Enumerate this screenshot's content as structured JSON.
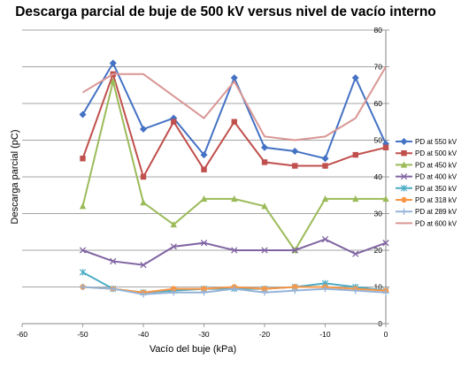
{
  "chart_data": {
    "type": "line",
    "title": "Descarga parcial de buje de 500 kV versus nivel de vacío interno",
    "xlabel": "Vacío del buje (kPa)",
    "ylabel": "Descarga parcial (pC)",
    "xlim": [
      -60,
      0
    ],
    "ylim": [
      0,
      80
    ],
    "x_ticks": [
      -60,
      -50,
      -40,
      -30,
      -20,
      -10,
      0
    ],
    "y_ticks": [
      0,
      10,
      20,
      30,
      40,
      50,
      60,
      70,
      80
    ],
    "y_axis_side": "right",
    "grid": "horizontal",
    "legend_position": "right",
    "series": [
      {
        "name": "PD at 550 kV",
        "color": "#4472C4",
        "marker": "diamond",
        "x": [
          -50,
          -45,
          -40,
          -35,
          -30,
          -25,
          -20,
          -15,
          -10,
          -5,
          0
        ],
        "values": [
          57,
          71,
          53,
          56,
          46,
          67,
          48,
          47,
          45,
          67,
          49
        ]
      },
      {
        "name": "PD at 500 kV",
        "color": "#C0504D",
        "marker": "square",
        "x": [
          -50,
          -45,
          -40,
          -35,
          -30,
          -25,
          -20,
          -15,
          -10,
          -5,
          0
        ],
        "values": [
          45,
          68,
          40,
          55,
          42,
          55,
          44,
          43,
          43,
          46,
          48
        ]
      },
      {
        "name": "PD at 450 kV",
        "color": "#9BBB59",
        "marker": "triangle",
        "x": [
          -50,
          -45,
          -40,
          -35,
          -30,
          -25,
          -20,
          -15,
          -10,
          -5,
          0
        ],
        "values": [
          32,
          66,
          33,
          27,
          34,
          34,
          32,
          20,
          34,
          34,
          34
        ]
      },
      {
        "name": "PD at 400 kV",
        "color": "#8064A2",
        "marker": "x",
        "x": [
          -50,
          -45,
          -40,
          -35,
          -30,
          -25,
          -20,
          -15,
          -10,
          -5,
          0
        ],
        "values": [
          20,
          17,
          16,
          21,
          22,
          20,
          20,
          20,
          23,
          19,
          22
        ]
      },
      {
        "name": "PD at 350 kV",
        "color": "#4BACC6",
        "marker": "star",
        "x": [
          -50,
          -45,
          -40,
          -35,
          -30,
          -25,
          -20,
          -15,
          -10,
          -5,
          0
        ],
        "values": [
          14,
          9.5,
          8.5,
          9,
          9.5,
          9.5,
          9.5,
          10,
          11,
          10,
          9
        ]
      },
      {
        "name": "PD at 318 kV",
        "color": "#F79646",
        "marker": "circle",
        "x": [
          -50,
          -45,
          -40,
          -35,
          -30,
          -25,
          -20,
          -15,
          -10,
          -5,
          0
        ],
        "values": [
          10,
          9.5,
          8.5,
          9.5,
          9.5,
          10,
          9.5,
          10,
          10,
          9.5,
          9
        ]
      },
      {
        "name": "PD at 289 kV",
        "color": "#95B3D7",
        "marker": "plus",
        "x": [
          -50,
          -45,
          -40,
          -35,
          -30,
          -25,
          -20,
          -15,
          -10,
          -5,
          0
        ],
        "values": [
          10,
          9.5,
          8,
          8.5,
          8.5,
          9.5,
          8.5,
          9,
          9.5,
          9,
          8.5
        ]
      },
      {
        "name": "PD at 600 kV",
        "color": "#D99694",
        "marker": "none",
        "x": [
          -50,
          -45,
          -40,
          -35,
          -30,
          -25,
          -20,
          -15,
          -10,
          -5,
          0
        ],
        "values": [
          63,
          68,
          68,
          62,
          56,
          66,
          51,
          50,
          51,
          56,
          70
        ]
      }
    ]
  }
}
